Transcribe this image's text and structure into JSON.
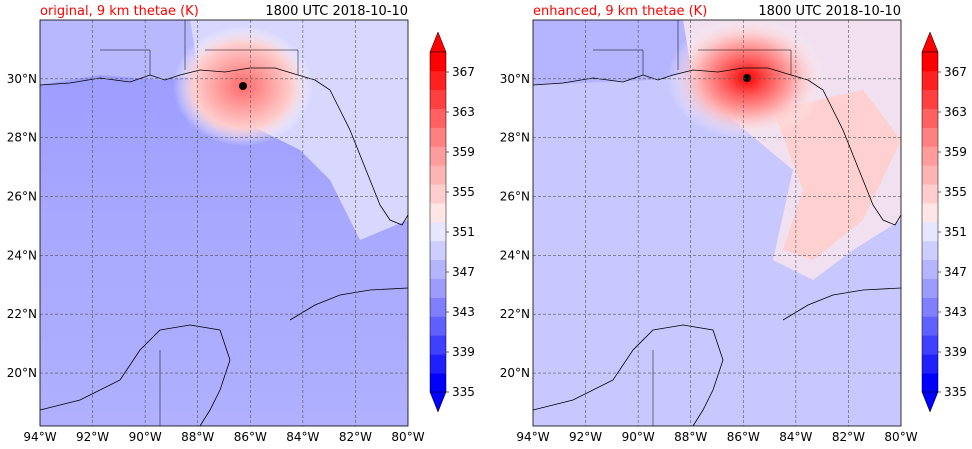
{
  "panels": [
    {
      "title": "original, 9 km thetae (K)",
      "time": "1800 UTC 2018-10-10",
      "storm_center": {
        "lon": -86.3,
        "lat": 29.8
      },
      "core_color": "#ff6a6a"
    },
    {
      "title": "enhanced, 9 km thetae (K)",
      "time": "1800 UTC 2018-10-10",
      "storm_center": {
        "lon": -85.8,
        "lat": 30.1
      },
      "core_color": "#ff0000"
    }
  ],
  "map_extent": {
    "lon_min": -94,
    "lon_max": -80,
    "lat_min": 18.2,
    "lat_max": 32.0
  },
  "lon_ticks": [
    -94,
    -92,
    -90,
    -88,
    -86,
    -84,
    -82,
    -80
  ],
  "lon_tick_labels": [
    "94°W",
    "92°W",
    "90°W",
    "88°W",
    "86°W",
    "84°W",
    "82°W",
    "80°W"
  ],
  "lat_ticks": [
    20,
    22,
    24,
    26,
    28,
    30
  ],
  "lat_tick_labels": [
    "20°N",
    "22°N",
    "24°N",
    "26°N",
    "28°N",
    "30°N"
  ],
  "colorbar": {
    "levels": [
      335,
      337,
      339,
      341,
      343,
      345,
      347,
      349,
      351,
      353,
      355,
      357,
      359,
      361,
      363,
      365,
      367,
      369
    ],
    "labels": [
      "335",
      "339",
      "343",
      "347",
      "351",
      "355",
      "359",
      "363",
      "367"
    ],
    "colors": [
      "#0000ff",
      "#2020ff",
      "#4040ff",
      "#6060ff",
      "#8080ff",
      "#9c9cff",
      "#b4b4ff",
      "#cdcdff",
      "#e6e6ff",
      "#ffe6e6",
      "#ffcdcd",
      "#ffb4b4",
      "#ff9c9c",
      "#ff8080",
      "#ff6060",
      "#ff4040",
      "#ff2020",
      "#ff0000"
    ],
    "extend": "both"
  }
}
